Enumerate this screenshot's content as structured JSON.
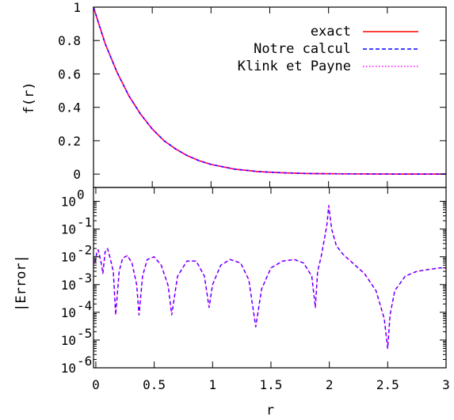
{
  "chart_data": [
    {
      "type": "line",
      "ylabel": "f(r)",
      "xlim": [
        0,
        3
      ],
      "ylim": [
        -0.08,
        1.0
      ],
      "yticks": [
        "0",
        "0.2",
        "0.4",
        "0.6",
        "0.8",
        "1"
      ],
      "legend_position": "top-right",
      "grid": false,
      "series": [
        {
          "name": "exact",
          "color": "#ff0000",
          "dash": "solid",
          "x": [
            0,
            0.1,
            0.2,
            0.3,
            0.4,
            0.5,
            0.6,
            0.7,
            0.8,
            0.9,
            1.0,
            1.2,
            1.4,
            1.6,
            1.8,
            2.0,
            2.5,
            3.0
          ],
          "y": [
            1.0,
            0.78,
            0.61,
            0.47,
            0.36,
            0.27,
            0.2,
            0.15,
            0.11,
            0.08,
            0.058,
            0.03,
            0.015,
            0.008,
            0.004,
            0.002,
            0.0004,
            0.0001
          ]
        },
        {
          "name": "Notre calcul",
          "color": "#0000ff",
          "dash": "dashed",
          "x": [
            0,
            0.1,
            0.2,
            0.3,
            0.4,
            0.5,
            0.6,
            0.7,
            0.8,
            0.9,
            1.0,
            1.2,
            1.4,
            1.6,
            1.8,
            2.0,
            2.5,
            3.0
          ],
          "y": [
            1.0,
            0.78,
            0.61,
            0.47,
            0.36,
            0.27,
            0.2,
            0.15,
            0.11,
            0.08,
            0.058,
            0.03,
            0.015,
            0.008,
            0.004,
            0.002,
            0.0004,
            0.0001
          ]
        },
        {
          "name": "Klink et Payne",
          "color": "#ff00ff",
          "dash": "dotted",
          "x": [
            0,
            0.1,
            0.2,
            0.3,
            0.4,
            0.5,
            0.6,
            0.7,
            0.8,
            0.9,
            1.0,
            1.2,
            1.4,
            1.6,
            1.8,
            2.0,
            2.5,
            3.0
          ],
          "y": [
            1.0,
            0.78,
            0.61,
            0.47,
            0.36,
            0.27,
            0.2,
            0.15,
            0.11,
            0.08,
            0.058,
            0.03,
            0.015,
            0.008,
            0.004,
            0.002,
            0.0004,
            0.0001
          ]
        }
      ]
    },
    {
      "type": "line",
      "xlabel": "r",
      "ylabel": "|Error|",
      "xlim": [
        -0.02,
        3
      ],
      "ylim_log10": [
        -6,
        0.5
      ],
      "yscale": "log",
      "xticks": [
        "0",
        "0.5",
        "1",
        "1.5",
        "2",
        "2.5",
        "3"
      ],
      "ytick_mantissa": "10",
      "yticks": [
        "0",
        "-1",
        "-2",
        "-3",
        "-4",
        "-5",
        "-6"
      ],
      "grid": false,
      "series": [
        {
          "name": "Notre calcul",
          "color": "#0000ff",
          "dash": "dashed",
          "x": [
            -0.01,
            0.0,
            0.01,
            0.02,
            0.03,
            0.05,
            0.06,
            0.08,
            0.1,
            0.12,
            0.15,
            0.17,
            0.2,
            0.23,
            0.27,
            0.31,
            0.35,
            0.37,
            0.4,
            0.44,
            0.5,
            0.56,
            0.62,
            0.65,
            0.7,
            0.78,
            0.86,
            0.93,
            0.97,
            1.0,
            1.07,
            1.15,
            1.24,
            1.31,
            1.37,
            1.42,
            1.5,
            1.6,
            1.7,
            1.78,
            1.85,
            1.88,
            1.9,
            1.93,
            1.96,
            1.98,
            1.995,
            2.02,
            2.06,
            2.12,
            2.2,
            2.3,
            2.4,
            2.47,
            2.5,
            2.52,
            2.56,
            2.65,
            2.75,
            2.85,
            2.95,
            3.0
          ],
          "y": [
            0.006,
            0.009,
            0.015,
            0.018,
            0.012,
            0.005,
            0.0025,
            0.015,
            0.02,
            0.01,
            0.003,
            8e-05,
            0.003,
            0.009,
            0.011,
            0.006,
            0.001,
            8e-05,
            0.002,
            0.008,
            0.01,
            0.005,
            0.0009,
            8e-05,
            0.002,
            0.007,
            0.007,
            0.002,
            0.00015,
            0.001,
            0.005,
            0.008,
            0.006,
            0.0015,
            3e-05,
            0.0007,
            0.004,
            0.007,
            0.008,
            0.006,
            0.002,
            0.00015,
            0.003,
            0.01,
            0.05,
            0.15,
            0.7,
            0.1,
            0.025,
            0.012,
            0.006,
            0.0025,
            0.0006,
            6e-05,
            5e-06,
            8e-05,
            0.0006,
            0.002,
            0.003,
            0.0035,
            0.004,
            0.004
          ]
        },
        {
          "name": "Klink et Payne",
          "color": "#ff00ff",
          "dash": "dotted",
          "x": [
            -0.01,
            0.0,
            0.01,
            0.02,
            0.03,
            0.05,
            0.06,
            0.08,
            0.1,
            0.12,
            0.15,
            0.17,
            0.2,
            0.23,
            0.27,
            0.31,
            0.35,
            0.37,
            0.4,
            0.44,
            0.5,
            0.56,
            0.62,
            0.65,
            0.7,
            0.78,
            0.86,
            0.93,
            0.97,
            1.0,
            1.07,
            1.15,
            1.24,
            1.31,
            1.37,
            1.42,
            1.5,
            1.6,
            1.7,
            1.78,
            1.85,
            1.88,
            1.9,
            1.93,
            1.96,
            1.98,
            1.995,
            2.02,
            2.06,
            2.12,
            2.2,
            2.3,
            2.4,
            2.47,
            2.5,
            2.52,
            2.56,
            2.65,
            2.75,
            2.85,
            2.95,
            3.0
          ],
          "y": [
            0.006,
            0.009,
            0.015,
            0.018,
            0.012,
            0.005,
            0.0025,
            0.015,
            0.02,
            0.01,
            0.003,
            8e-05,
            0.003,
            0.009,
            0.011,
            0.006,
            0.001,
            8e-05,
            0.002,
            0.008,
            0.01,
            0.005,
            0.0009,
            8e-05,
            0.002,
            0.007,
            0.007,
            0.002,
            0.00015,
            0.001,
            0.005,
            0.008,
            0.006,
            0.0015,
            3e-05,
            0.0007,
            0.004,
            0.007,
            0.008,
            0.006,
            0.002,
            0.00015,
            0.003,
            0.01,
            0.05,
            0.15,
            0.7,
            0.1,
            0.025,
            0.012,
            0.006,
            0.0025,
            0.0006,
            6e-05,
            5e-06,
            8e-05,
            0.0006,
            0.002,
            0.003,
            0.0035,
            0.004,
            0.004
          ]
        }
      ]
    }
  ]
}
